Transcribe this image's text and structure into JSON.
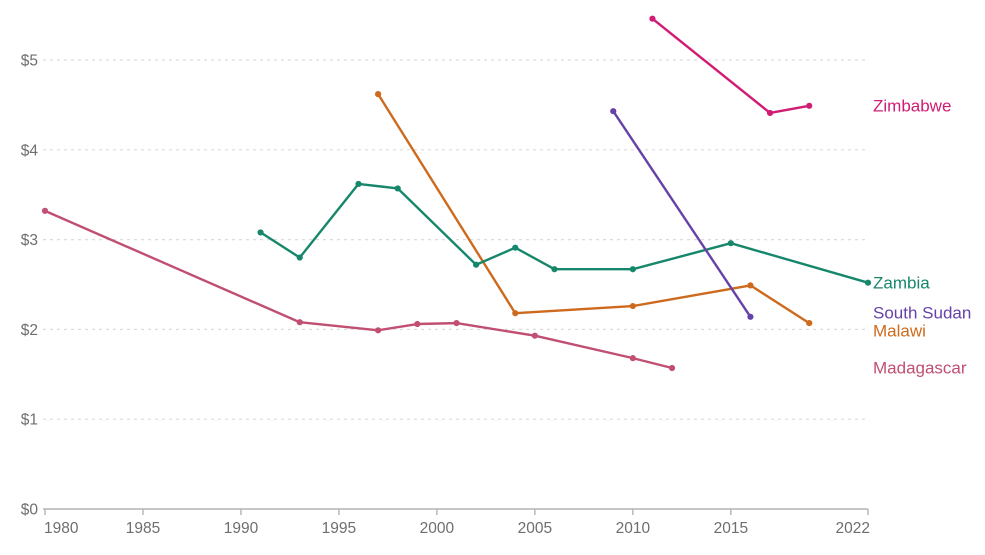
{
  "chart_data": {
    "type": "line",
    "title": "",
    "xlabel": "",
    "ylabel": "",
    "x_axis": {
      "domain": [
        1980,
        2022
      ],
      "ticks": [
        1980,
        1985,
        1990,
        1995,
        2000,
        2005,
        2010,
        2015,
        2022
      ]
    },
    "y_axis": {
      "domain": [
        0,
        5.5
      ],
      "ticks": [
        0,
        1,
        2,
        3,
        4,
        5
      ],
      "tick_labels": [
        "$0",
        "$1",
        "$2",
        "$3",
        "$4",
        "$5"
      ],
      "currency_prefix": "$"
    },
    "grid": "horizontal-dashed",
    "legend_position": "right-of-plot",
    "colors": {
      "axis_text": "#6e6e6e",
      "axis_line": "#b3b3b3",
      "gridline": "#dcdcdc"
    },
    "series": [
      {
        "name": "Madagascar",
        "color": "#c04f72",
        "x": [
          1980,
          1993,
          1997,
          1999,
          2001,
          2005,
          2010,
          2012
        ],
        "values": [
          3.32,
          2.08,
          1.99,
          2.06,
          2.07,
          1.93,
          1.68,
          1.57
        ],
        "label_dy": 0
      },
      {
        "name": "Malawi",
        "color": "#cd6a1d",
        "x": [
          1997,
          2004,
          2010,
          2016,
          2019
        ],
        "values": [
          4.62,
          2.18,
          2.26,
          2.49,
          2.07
        ],
        "label_dy": 8
      },
      {
        "name": "Zambia",
        "color": "#17876b",
        "x": [
          1991,
          1993,
          1996,
          1998,
          2002,
          2004,
          2006,
          2010,
          2015,
          2022
        ],
        "values": [
          3.08,
          2.8,
          3.62,
          3.57,
          2.72,
          2.91,
          2.67,
          2.67,
          2.96,
          2.52
        ],
        "label_dy": 0
      },
      {
        "name": "South Sudan",
        "color": "#6642a8",
        "x": [
          2009,
          2016
        ],
        "values": [
          4.43,
          2.14
        ],
        "label_dy": -4
      },
      {
        "name": "Zimbabwe",
        "color": "#d01c74",
        "x": [
          2011,
          2017,
          2019
        ],
        "values": [
          5.46,
          4.41,
          4.49
        ],
        "label_dy": 0
      }
    ]
  }
}
